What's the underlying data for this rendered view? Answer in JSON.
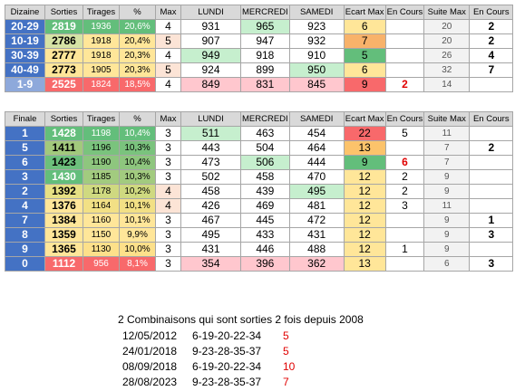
{
  "table1": {
    "headers": [
      "Dizaine",
      "Sorties",
      "Tirages",
      "%",
      "Max",
      "LUNDI",
      "MERCREDI",
      "SAMEDI",
      "Ecart Max",
      "En Cours",
      "Suite Max",
      "En Cours"
    ],
    "rows": [
      {
        "label": "20-29",
        "sorties": "2819",
        "tirages": "1936",
        "pct": "20,6%",
        "max": "4",
        "lundi": "931",
        "mercredi": "965",
        "samedi": "923",
        "ecart": "6",
        "encours": "",
        "suite": "20",
        "encours2": "2",
        "colors": {
          "label": "#4472c4",
          "sorties": "#63be7b",
          "tirages": "#63be7b",
          "pct": "#63be7b",
          "max": "#ffffff",
          "lundi": "#ffffff",
          "mercredi": "#c6efce",
          "samedi": "#ffffff",
          "ecart": "#ffe699"
        }
      },
      {
        "label": "10-19",
        "sorties": "2786",
        "tirages": "1918",
        "pct": "20,4%",
        "max": "5",
        "lundi": "907",
        "mercredi": "947",
        "samedi": "932",
        "ecart": "7",
        "encours": "",
        "suite": "20",
        "encours2": "2",
        "colors": {
          "label": "#4472c4",
          "sorties": "#d6e3a5",
          "tirages": "#ffe699",
          "pct": "#ffe699",
          "max": "#fce4d6",
          "lundi": "#ffffff",
          "mercredi": "#ffffff",
          "samedi": "#ffffff",
          "ecart": "#f8b26a"
        }
      },
      {
        "label": "30-39",
        "sorties": "2777",
        "tirages": "1918",
        "pct": "20,3%",
        "max": "4",
        "lundi": "949",
        "mercredi": "918",
        "samedi": "910",
        "ecart": "5",
        "encours": "",
        "suite": "26",
        "encours2": "4",
        "colors": {
          "label": "#4472c4",
          "sorties": "#ffe699",
          "tirages": "#ffe699",
          "pct": "#ffe699",
          "max": "#ffffff",
          "lundi": "#c6efce",
          "mercredi": "#ffffff",
          "samedi": "#ffffff",
          "ecart": "#63be7b"
        }
      },
      {
        "label": "40-49",
        "sorties": "2773",
        "tirages": "1905",
        "pct": "20,3%",
        "max": "5",
        "lundi": "924",
        "mercredi": "899",
        "samedi": "950",
        "ecart": "6",
        "encours": "",
        "suite": "32",
        "encours2": "7",
        "colors": {
          "label": "#4472c4",
          "sorties": "#ffe699",
          "tirages": "#ffe699",
          "pct": "#ffe699",
          "max": "#fce4d6",
          "lundi": "#ffffff",
          "mercredi": "#ffffff",
          "samedi": "#c6efce",
          "ecart": "#ffe699"
        }
      },
      {
        "label": "1-9",
        "sorties": "2525",
        "tirages": "1824",
        "pct": "18,5%",
        "max": "4",
        "lundi": "849",
        "mercredi": "831",
        "samedi": "845",
        "ecart": "9",
        "encours": "2",
        "suite": "14",
        "encours2": "",
        "colors": {
          "label": "#8ea9db",
          "sorties": "#f8696b",
          "tirages": "#f8696b",
          "pct": "#f8696b",
          "max": "#ffffff",
          "lundi": "#ffc7ce",
          "mercredi": "#ffc7ce",
          "samedi": "#ffc7ce",
          "ecart": "#f8696b"
        }
      }
    ]
  },
  "table2": {
    "headers": [
      "Finale",
      "Sorties",
      "Tirages",
      "%",
      "Max",
      "LUNDI",
      "MERCREDI",
      "SAMEDI",
      "Ecart Max",
      "En Cours",
      "Suite Max",
      "En Cours"
    ],
    "rows": [
      {
        "label": "1",
        "sorties": "1428",
        "tirages": "1198",
        "pct": "10,4%",
        "max": "3",
        "lundi": "511",
        "mercredi": "463",
        "samedi": "454",
        "ecart": "22",
        "encours": "5",
        "suite": "11",
        "encours2": "",
        "colors": {
          "label": "#4472c4",
          "sorties": "#63be7b",
          "tirages": "#63be7b",
          "pct": "#63be7b",
          "max": "#ffffff",
          "lundi": "#c6efce",
          "mercredi": "#ffffff",
          "samedi": "#ffffff",
          "ecart": "#f8696b"
        }
      },
      {
        "label": "5",
        "sorties": "1411",
        "tirages": "1196",
        "pct": "10,3%",
        "max": "3",
        "lundi": "443",
        "mercredi": "504",
        "samedi": "464",
        "ecart": "13",
        "encours": "",
        "suite": "7",
        "encours2": "2",
        "colors": {
          "label": "#4472c4",
          "sorties": "#a2c97c",
          "tirages": "#7ac37d",
          "pct": "#7ac37d",
          "max": "#ffffff",
          "lundi": "#ffffff",
          "mercredi": "#ffffff",
          "samedi": "#ffffff",
          "ecart": "#fcc36b"
        }
      },
      {
        "label": "6",
        "sorties": "1423",
        "tirages": "1190",
        "pct": "10,4%",
        "max": "3",
        "lundi": "473",
        "mercredi": "506",
        "samedi": "444",
        "ecart": "9",
        "encours": "6",
        "suite": "7",
        "encours2": "",
        "colors": {
          "label": "#4472c4",
          "sorties": "#6cc07c",
          "tirages": "#8ec67e",
          "pct": "#8ec67e",
          "max": "#ffffff",
          "lundi": "#ffffff",
          "mercredi": "#c6efce",
          "samedi": "#ffffff",
          "ecart": "#63be7b"
        }
      },
      {
        "label": "3",
        "sorties": "1430",
        "tirages": "1185",
        "pct": "10,3%",
        "max": "3",
        "lundi": "502",
        "mercredi": "458",
        "samedi": "470",
        "ecart": "12",
        "encours": "2",
        "suite": "9",
        "encours2": "",
        "colors": {
          "label": "#4472c4",
          "sorties": "#63be7b",
          "tirages": "#a2cb7f",
          "pct": "#a2cb7f",
          "max": "#ffffff",
          "lundi": "#ffffff",
          "mercredi": "#ffffff",
          "samedi": "#ffffff",
          "ecart": "#ffe699"
        }
      },
      {
        "label": "2",
        "sorties": "1392",
        "tirages": "1178",
        "pct": "10,2%",
        "max": "4",
        "lundi": "458",
        "mercredi": "439",
        "samedi": "495",
        "ecart": "12",
        "encours": "2",
        "suite": "9",
        "encours2": "",
        "colors": {
          "label": "#4472c4",
          "sorties": "#e6e084",
          "tirages": "#cfd980",
          "pct": "#cfd980",
          "max": "#fce4d6",
          "lundi": "#ffffff",
          "mercredi": "#ffffff",
          "samedi": "#c6efce",
          "ecart": "#ffe699"
        }
      },
      {
        "label": "4",
        "sorties": "1376",
        "tirages": "1164",
        "pct": "10,1%",
        "max": "4",
        "lundi": "426",
        "mercredi": "469",
        "samedi": "481",
        "ecart": "12",
        "encours": "3",
        "suite": "11",
        "encours2": "",
        "colors": {
          "label": "#4472c4",
          "sorties": "#ffe699",
          "tirages": "#f2e085",
          "pct": "#f2e085",
          "max": "#fce4d6",
          "lundi": "#ffffff",
          "mercredi": "#ffffff",
          "samedi": "#ffffff",
          "ecart": "#ffe699"
        }
      },
      {
        "label": "7",
        "sorties": "1384",
        "tirages": "1160",
        "pct": "10,1%",
        "max": "3",
        "lundi": "467",
        "mercredi": "445",
        "samedi": "472",
        "ecart": "12",
        "encours": "",
        "suite": "9",
        "encours2": "1",
        "colors": {
          "label": "#4472c4",
          "sorties": "#ffe699",
          "tirages": "#ffe699",
          "pct": "#ffe699",
          "max": "#ffffff",
          "lundi": "#ffffff",
          "mercredi": "#ffffff",
          "samedi": "#ffffff",
          "ecart": "#ffe699"
        }
      },
      {
        "label": "8",
        "sorties": "1359",
        "tirages": "1150",
        "pct": "9,9%",
        "max": "3",
        "lundi": "495",
        "mercredi": "433",
        "samedi": "431",
        "ecart": "12",
        "encours": "",
        "suite": "9",
        "encours2": "3",
        "colors": {
          "label": "#4472c4",
          "sorties": "#ffe699",
          "tirages": "#ffe699",
          "pct": "#ffe699",
          "max": "#ffffff",
          "lundi": "#ffffff",
          "mercredi": "#ffffff",
          "samedi": "#ffffff",
          "ecart": "#ffe699"
        }
      },
      {
        "label": "9",
        "sorties": "1365",
        "tirages": "1130",
        "pct": "10,0%",
        "max": "3",
        "lundi": "431",
        "mercredi": "446",
        "samedi": "488",
        "ecart": "12",
        "encours": "1",
        "suite": "9",
        "encours2": "",
        "colors": {
          "label": "#4472c4",
          "sorties": "#ffe699",
          "tirages": "#fde08a",
          "pct": "#fde08a",
          "max": "#ffffff",
          "lundi": "#ffffff",
          "mercredi": "#ffffff",
          "samedi": "#ffffff",
          "ecart": "#ffe699"
        }
      },
      {
        "label": "0",
        "sorties": "1112",
        "tirages": "956",
        "pct": "8,1%",
        "max": "3",
        "lundi": "354",
        "mercredi": "396",
        "samedi": "362",
        "ecart": "13",
        "encours": "",
        "suite": "6",
        "encours2": "3",
        "colors": {
          "label": "#4472c4",
          "sorties": "#f8696b",
          "tirages": "#f8696b",
          "pct": "#f8696b",
          "max": "#ffffff",
          "lundi": "#ffc7ce",
          "mercredi": "#ffc7ce",
          "samedi": "#ffc7ce",
          "ecart": "#ffe699"
        }
      }
    ]
  },
  "footer": {
    "title": "2 Combinaisons qui sont sorties 2 fois depuis 2008",
    "combos": [
      {
        "date": "12/05/2012",
        "nums": "6-19-20-22-34",
        "count": "5"
      },
      {
        "date": "24/01/2018",
        "nums": "9-23-28-35-37",
        "count": "5"
      },
      {
        "date": "08/09/2018",
        "nums": "6-19-20-22-34",
        "count": "10"
      },
      {
        "date": "28/08/2023",
        "nums": "9-23-28-35-37",
        "count": "7"
      }
    ]
  }
}
